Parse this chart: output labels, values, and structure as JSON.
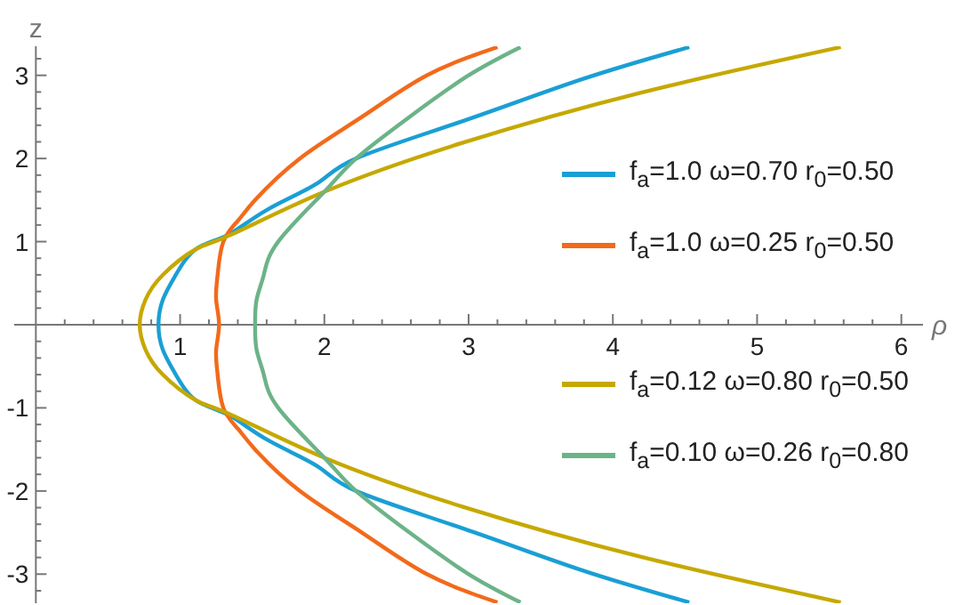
{
  "chart_data": {
    "type": "line",
    "xlabel": "ρ",
    "ylabel": "z",
    "xlim": [
      -0.15,
      6.15
    ],
    "ylim": [
      -3.35,
      3.35
    ],
    "xticks": [
      {
        "value": 0.2,
        "label": null
      },
      {
        "value": 0.4,
        "label": null
      },
      {
        "value": 0.6,
        "label": null
      },
      {
        "value": 0.8,
        "label": null
      },
      1,
      {
        "value": 1.2,
        "label": null
      },
      {
        "value": 1.4,
        "label": null
      },
      {
        "value": 1.6,
        "label": null
      },
      {
        "value": 1.8,
        "label": null
      },
      2,
      {
        "value": 2.2,
        "label": null
      },
      {
        "value": 2.4,
        "label": null
      },
      {
        "value": 2.6,
        "label": null
      },
      {
        "value": 2.8,
        "label": null
      },
      3,
      {
        "value": 3.2,
        "label": null
      },
      {
        "value": 3.4,
        "label": null
      },
      {
        "value": 3.6,
        "label": null
      },
      {
        "value": 3.8,
        "label": null
      },
      4,
      {
        "value": 4.2,
        "label": null
      },
      {
        "value": 4.4,
        "label": null
      },
      {
        "value": 4.6,
        "label": null
      },
      {
        "value": 4.8,
        "label": null
      },
      5,
      {
        "value": 5.2,
        "label": null
      },
      {
        "value": 5.4,
        "label": null
      },
      {
        "value": 5.6,
        "label": null
      },
      {
        "value": 5.8,
        "label": null
      },
      6
    ],
    "yticks": [
      {
        "value": -3.2,
        "label": null
      },
      -3,
      {
        "value": -2.8,
        "label": null
      },
      {
        "value": -2.6,
        "label": null
      },
      {
        "value": -2.4,
        "label": null
      },
      {
        "value": -2.2,
        "label": null
      },
      -2,
      {
        "value": -1.8,
        "label": null
      },
      {
        "value": -1.6,
        "label": null
      },
      {
        "value": -1.4,
        "label": null
      },
      {
        "value": -1.2,
        "label": null
      },
      -1,
      {
        "value": -0.8,
        "label": null
      },
      {
        "value": -0.6,
        "label": null
      },
      {
        "value": -0.4,
        "label": null
      },
      {
        "value": -0.2,
        "label": null
      },
      {
        "value": 0.2,
        "label": null
      },
      {
        "value": 0.4,
        "label": null
      },
      {
        "value": 0.6,
        "label": null
      },
      {
        "value": 0.8,
        "label": null
      },
      1,
      {
        "value": 1.2,
        "label": null
      },
      {
        "value": 1.4,
        "label": null
      },
      {
        "value": 1.6,
        "label": null
      },
      {
        "value": 1.8,
        "label": null
      },
      2,
      {
        "value": 2.2,
        "label": null
      },
      {
        "value": 2.4,
        "label": null
      },
      {
        "value": 2.6,
        "label": null
      },
      {
        "value": 2.8,
        "label": null
      },
      3,
      {
        "value": 3.2,
        "label": null
      }
    ],
    "grid": false,
    "legend": "right",
    "marker": "none",
    "series": [
      {
        "name": "f$_{a}$=1.0 ω=0.70 r$_{0}$=0.50",
        "color": "#1a9fd4",
        "x": [
          4.53,
          3.78,
          2.96,
          2.22,
          1.95,
          1.6,
          1.33,
          1.11,
          0.97,
          0.88,
          0.85,
          0.88,
          0.97,
          1.11,
          1.33,
          1.6,
          1.95,
          2.22,
          2.96,
          3.78,
          4.53
        ],
        "values": [
          -3.34,
          -2.95,
          -2.45,
          -2.0,
          -1.7,
          -1.38,
          -1.08,
          -0.91,
          -0.6,
          -0.3,
          0,
          0.3,
          0.6,
          0.91,
          1.08,
          1.38,
          1.7,
          2.0,
          2.45,
          2.95,
          3.34
        ]
      },
      {
        "name": "f$_{a}$=1.0 ω=0.25 r$_{0}$=0.50",
        "color": "#f26a1b",
        "x": [
          3.2,
          2.71,
          2.26,
          1.83,
          1.52,
          1.4,
          1.3,
          1.26,
          1.25,
          1.27,
          1.25,
          1.26,
          1.3,
          1.4,
          1.52,
          1.83,
          2.26,
          2.71,
          3.2
        ],
        "values": [
          -3.34,
          -3.0,
          -2.5,
          -2.0,
          -1.5,
          -1.25,
          -1.0,
          -0.6,
          -0.3,
          0,
          0.3,
          0.6,
          1.0,
          1.25,
          1.5,
          2.0,
          2.5,
          3.0,
          3.34
        ]
      },
      {
        "name": "f$_{a}$=0.12 ω=0.80 r$_{0}$=0.50",
        "color": "#c6a800",
        "x": [
          5.58,
          4.19,
          2.96,
          2.0,
          1.35,
          1.11,
          0.88,
          0.76,
          0.72,
          0.76,
          0.88,
          1.11,
          1.35,
          2.0,
          2.96,
          4.19,
          5.58
        ],
        "values": [
          -3.34,
          -2.79,
          -2.19,
          -1.6,
          -1.08,
          -0.91,
          -0.6,
          -0.3,
          0,
          0.3,
          0.6,
          0.91,
          1.08,
          1.6,
          2.19,
          2.79,
          3.34
        ]
      },
      {
        "name": "f$_{a}$=0.10 ω=0.26 r$_{0}$=0.80",
        "color": "#6cb388",
        "x": [
          3.36,
          3.0,
          2.59,
          2.22,
          2.0,
          1.68,
          1.58,
          1.53,
          1.52,
          1.53,
          1.58,
          1.68,
          2.0,
          2.22,
          2.59,
          3.0,
          3.36
        ],
        "values": [
          -3.34,
          -3.0,
          -2.5,
          -2.0,
          -1.6,
          -1.0,
          -0.6,
          -0.3,
          0,
          0.3,
          0.6,
          1.0,
          1.6,
          2.0,
          2.5,
          3.0,
          3.34
        ]
      }
    ]
  }
}
